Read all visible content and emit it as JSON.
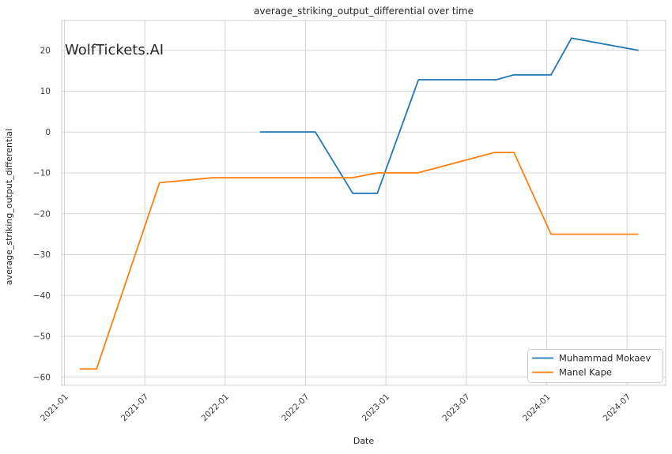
{
  "watermark": {
    "text": "WolfTickets.AI",
    "color": "#c8c8c8"
  },
  "chart_data": {
    "type": "line",
    "title": "average_striking_output_differential over time",
    "xlabel": "Date",
    "ylabel": "average_striking_output_differential",
    "x_tick_labels": [
      "2021-01",
      "2021-07",
      "2022-01",
      "2022-07",
      "2023-01",
      "2023-07",
      "2024-01",
      "2024-07"
    ],
    "y_tick_labels": [
      "20",
      "10",
      "0",
      "−10",
      "−20",
      "−30",
      "−40",
      "−50",
      "−60"
    ],
    "xlim": [
      "2020-12-25",
      "2024-09-28"
    ],
    "ylim": [
      -62,
      27.3
    ],
    "grid": true,
    "legend_position": "lower right",
    "series": [
      {
        "name": "Muhammad Mokaev",
        "color": "#1f77b4",
        "points": [
          [
            "2022-03-19",
            0
          ],
          [
            "2022-07-23",
            0
          ],
          [
            "2022-10-17",
            -15
          ],
          [
            "2022-12-12",
            -15
          ],
          [
            "2023-03-14",
            12.8
          ],
          [
            "2023-09-08",
            12.8
          ],
          [
            "2023-10-18",
            14
          ],
          [
            "2024-01-11",
            14
          ],
          [
            "2024-02-27",
            23
          ],
          [
            "2024-07-27",
            20
          ]
        ]
      },
      {
        "name": "Manel Kape",
        "color": "#ff7f0e",
        "points": [
          [
            "2021-02-05",
            -58
          ],
          [
            "2021-03-13",
            -58
          ],
          [
            "2021-08-04",
            -12.4
          ],
          [
            "2021-12-01",
            -11.2
          ],
          [
            "2022-10-14",
            -11.2
          ],
          [
            "2022-12-12",
            -10
          ],
          [
            "2023-03-12",
            -10
          ],
          [
            "2023-09-04",
            -5
          ],
          [
            "2023-10-18",
            -5
          ],
          [
            "2024-01-11",
            -25
          ],
          [
            "2024-07-27",
            -25
          ]
        ]
      }
    ]
  },
  "colors": {
    "grid": "#d4d4d4",
    "spine": "#cccccc",
    "background": "#ffffff",
    "legend_border": "#cccccc"
  }
}
